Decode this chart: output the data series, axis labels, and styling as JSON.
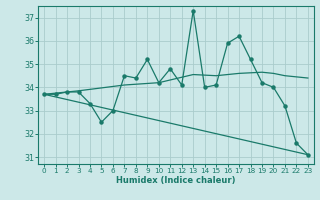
{
  "xlabel": "Humidex (Indice chaleur)",
  "bg_color": "#cce8e8",
  "grid_color": "#aacccc",
  "line_color": "#1a7a6a",
  "xlim": [
    -0.5,
    23.5
  ],
  "ylim": [
    30.7,
    37.5
  ],
  "yticks": [
    31,
    32,
    33,
    34,
    35,
    36,
    37
  ],
  "xticks": [
    0,
    1,
    2,
    3,
    4,
    5,
    6,
    7,
    8,
    9,
    10,
    11,
    12,
    13,
    14,
    15,
    16,
    17,
    18,
    19,
    20,
    21,
    22,
    23
  ],
  "series1_x": [
    0,
    1,
    2,
    3,
    4,
    5,
    6,
    7,
    8,
    9,
    10,
    11,
    12,
    13,
    14,
    15,
    16,
    17,
    18,
    19,
    20,
    21,
    22,
    23
  ],
  "series1_y": [
    33.7,
    33.7,
    33.8,
    33.8,
    33.3,
    32.5,
    33.0,
    34.5,
    34.4,
    35.2,
    34.2,
    34.8,
    34.1,
    37.3,
    34.0,
    34.1,
    35.9,
    36.2,
    35.2,
    34.2,
    34.0,
    33.2,
    31.6,
    31.1
  ],
  "series2_x": [
    0,
    23
  ],
  "series2_y": [
    33.7,
    31.1
  ],
  "series3_x": [
    0,
    3,
    7,
    10,
    13,
    15,
    17,
    19,
    20,
    21,
    22,
    23
  ],
  "series3_y": [
    33.7,
    33.85,
    34.1,
    34.2,
    34.55,
    34.5,
    34.6,
    34.65,
    34.6,
    34.5,
    34.45,
    34.4
  ]
}
